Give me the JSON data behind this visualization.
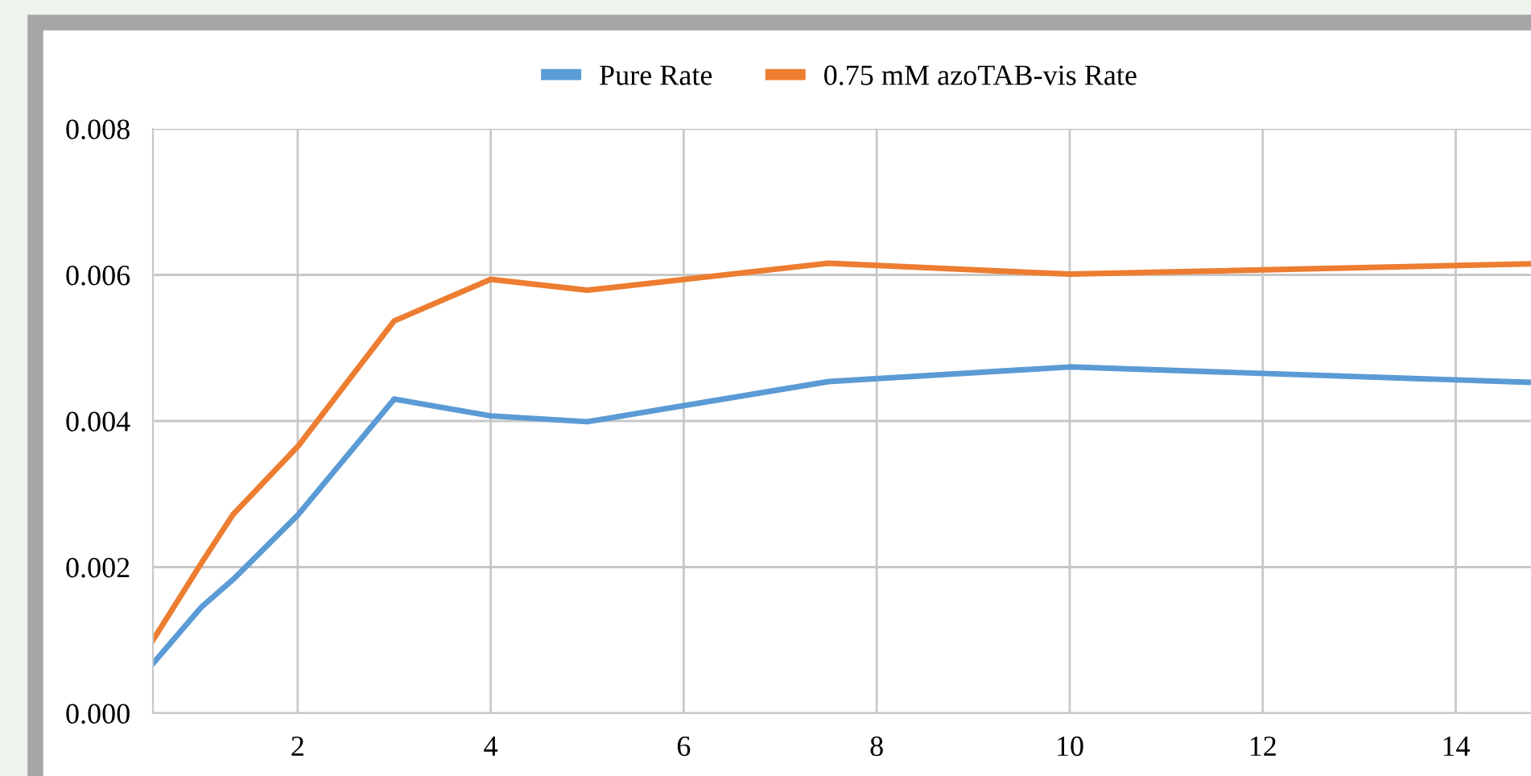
{
  "chart_data": {
    "type": "line",
    "series": [
      {
        "name": "Pure Rate",
        "color": "#5b9bd5",
        "x": [
          0.5,
          1.0,
          1.33,
          2,
          3,
          4,
          5,
          7.5,
          10,
          14.75
        ],
        "values": [
          0.00068,
          0.00145,
          0.00183,
          0.00271,
          0.0043,
          0.00407,
          0.00399,
          0.00454,
          0.00474,
          0.00453
        ]
      },
      {
        "name": "0.75 mM azoTAB-vis Rate",
        "color": "#ed7d31",
        "x": [
          0.5,
          1.0,
          1.33,
          2,
          3,
          4,
          5,
          7.5,
          10,
          14.75
        ],
        "values": [
          0.001,
          0.00205,
          0.00272,
          0.00365,
          0.00537,
          0.00594,
          0.00579,
          0.00616,
          0.00601,
          0.00615
        ]
      }
    ],
    "xlim": [
      0.5,
      14.78
    ],
    "xticks": [
      2,
      4,
      6,
      8,
      10,
      12,
      14
    ],
    "ylim": [
      0,
      0.008
    ],
    "yticks": [
      {
        "value": 0,
        "label": "0.000"
      },
      {
        "value": 0.002,
        "label": "0.002"
      },
      {
        "value": 0.004,
        "label": "0.004"
      },
      {
        "value": 0.006,
        "label": "0.006"
      },
      {
        "value": 0.008,
        "label": "0.008"
      }
    ],
    "grid": true,
    "legend": "top",
    "marker": "none",
    "line_style": "solid"
  }
}
